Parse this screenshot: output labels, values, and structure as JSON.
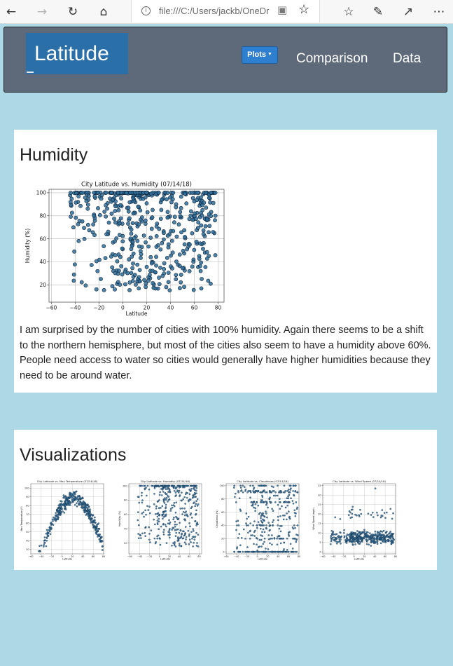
{
  "browser": {
    "url": "file:///C:/Users/jackb/OneDr",
    "icons": [
      "back-arrow-icon",
      "forward-arrow-icon",
      "refresh-icon",
      "home-icon",
      "info-icon",
      "reading-view-icon",
      "favorite-star-icon",
      "favorites-list-icon",
      "pen-icon",
      "share-icon",
      "more-icon"
    ]
  },
  "navbar": {
    "brand": "Latitude",
    "plots_label": "Plots",
    "links": [
      "Comparison",
      "Data"
    ]
  },
  "humidity": {
    "heading": "Humidity",
    "paragraph": "I am surprised by the number of cities with 100% humidity. Again there seems to be a shift to the northern hemisphere, but most of the cities also seem to have a humidity above 60%. People need access to water so cities would generally have higher humidities because they need to be around water."
  },
  "visualizations": {
    "heading": "Visualizations"
  },
  "colors": {
    "background": "#add8e6",
    "navbar": "#5e6a79",
    "brand": "#2a6fa8",
    "button": "#2f7fd0",
    "marker": "#2e6f9a"
  },
  "chart_data": [
    {
      "type": "scatter",
      "title": "City Latitude vs. Humidity (07/14/18)",
      "xlabel": "Latitude",
      "ylabel": "Humidity (%)",
      "xlim": [
        -62,
        85
      ],
      "ylim": [
        5,
        103
      ],
      "xticks": [
        -60,
        -40,
        -20,
        0,
        20,
        40,
        60,
        80
      ],
      "yticks": [
        20,
        40,
        60,
        80,
        100
      ],
      "grid": true,
      "seed": 7,
      "points": 520
    },
    {
      "type": "scatter",
      "title": "City Latitude vs. Max Temperature (07/14/18)",
      "xlabel": "Latitude",
      "ylabel": "Max Temperature (F)",
      "xlim": [
        -60,
        80
      ],
      "ylim": [
        25,
        105
      ],
      "xticks": [
        -60,
        -40,
        -20,
        0,
        20,
        40,
        60,
        80
      ],
      "yticks": [
        30,
        40,
        50,
        60,
        70,
        80,
        90,
        100
      ],
      "grid": true,
      "seed": 11,
      "points": 420
    },
    {
      "type": "scatter",
      "title": "City Latitude vs. Humidity (07/14/18)",
      "xlabel": "Latitude",
      "ylabel": "Humidity (%)",
      "xlim": [
        -62,
        85
      ],
      "ylim": [
        5,
        103
      ],
      "xticks": [
        -60,
        -40,
        -20,
        0,
        20,
        40,
        60,
        80
      ],
      "yticks": [
        20,
        40,
        60,
        80,
        100
      ],
      "grid": true,
      "seed": 13,
      "points": 420
    },
    {
      "type": "scatter",
      "title": "City Latitude vs. Cloudiness (07/14/18)",
      "xlabel": "Latitude",
      "ylabel": "Cloudiness (%)",
      "xlim": [
        -60,
        80
      ],
      "ylim": [
        -3,
        103
      ],
      "xticks": [
        -60,
        -40,
        -20,
        0,
        20,
        40,
        60,
        80
      ],
      "yticks": [
        0,
        20,
        40,
        60,
        80,
        100
      ],
      "grid": true,
      "seed": 17,
      "points": 420
    },
    {
      "type": "scatter",
      "title": "City Latitude vs. Wind Speed (07/14/18)",
      "xlabel": "Latitude",
      "ylabel": "Wind Speed (mph)",
      "xlim": [
        -60,
        80
      ],
      "ylim": [
        -1,
        36
      ],
      "xticks": [
        -60,
        -40,
        -20,
        0,
        20,
        40,
        60,
        80
      ],
      "yticks": [
        0,
        5,
        10,
        15,
        20,
        25,
        30,
        35
      ],
      "grid": true,
      "seed": 19,
      "points": 420
    }
  ]
}
